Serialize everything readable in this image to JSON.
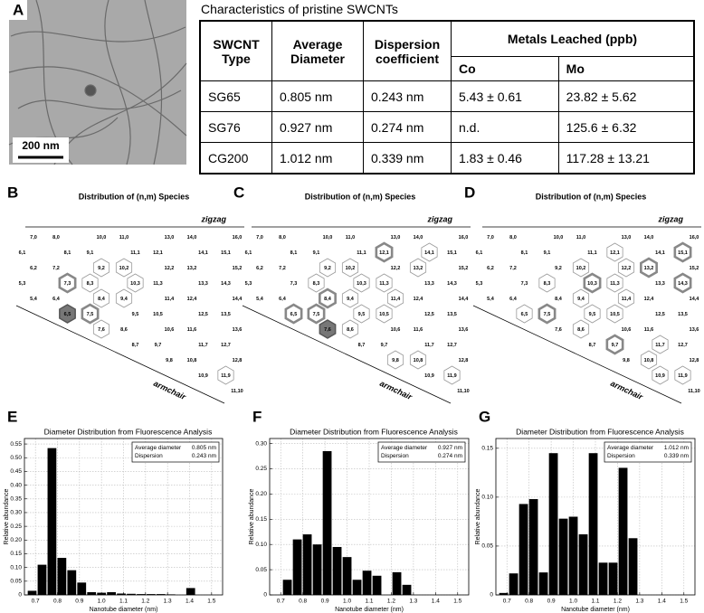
{
  "panel_a": {
    "letter": "A",
    "scale_bar": "200 nm"
  },
  "table": {
    "title": "Characteristics of pristine SWCNTs",
    "header": [
      "SWCNT Type",
      "Average Diameter",
      "Dispersion coefficient",
      "Metals Leached (ppb)"
    ],
    "subheader": [
      "Co",
      "Mo"
    ],
    "rows": [
      [
        "SG65",
        "0.805 nm",
        "0.243 nm",
        "5.43 ± 0.61",
        "23.82 ± 5.62"
      ],
      [
        "SG76",
        "0.927 nm",
        "0.274 nm",
        "n.d.",
        "125.6 ± 6.32"
      ],
      [
        "CG200",
        "1.012 nm",
        "0.339 nm",
        "1.83 ± 0.46",
        "117.28 ± 13.21"
      ]
    ]
  },
  "maps": [
    {
      "letter": "B",
      "title": "Distribution of (n,m) Species",
      "zigzag_label": "zigzag",
      "armchair_label": "armchair",
      "species": [
        [
          {
            "label": "7,0"
          },
          {
            "label": "8,0"
          },
          {
            "label": "10,0"
          },
          {
            "label": "11,0"
          },
          {
            "label": "13,0"
          },
          {
            "label": "14,0"
          },
          {
            "label": "16,0"
          }
        ],
        [
          {
            "label": "6,1"
          },
          {
            "label": "8,1"
          },
          {
            "label": "9,1"
          },
          {
            "label": "11,1"
          },
          {
            "label": "12,1"
          },
          {
            "label": "14,1"
          },
          {
            "label": "15,1"
          }
        ],
        [
          {
            "label": "6,2"
          },
          {
            "label": "7,2"
          },
          {
            "label": "9,2",
            "hex": "thin"
          },
          {
            "label": "10,2",
            "hex": "thin"
          },
          {
            "label": "12,2"
          },
          {
            "label": "13,2"
          },
          {
            "label": "15,2"
          }
        ],
        [
          {
            "label": "5,3"
          },
          {
            "label": "7,3",
            "hex": "bold"
          },
          {
            "label": "8,3",
            "hex": "thin"
          },
          {
            "label": "10,3",
            "hex": "thin"
          },
          {
            "label": "11,3"
          },
          {
            "label": "13,3"
          },
          {
            "label": "14,3"
          }
        ],
        [
          {
            "label": "5,4"
          },
          {
            "label": "6,4"
          },
          {
            "label": "8,4",
            "hex": "thin"
          },
          {
            "label": "9,4",
            "hex": "thin"
          },
          {
            "label": "11,4"
          },
          {
            "label": "12,4"
          },
          {
            "label": "14,4"
          }
        ],
        [
          {
            "label": "6,5",
            "hex": "filled"
          },
          {
            "label": "7,5",
            "hex": "bold"
          },
          {
            "label": "9,5"
          },
          {
            "label": "10,5"
          },
          {
            "label": "12,5"
          },
          {
            "label": "13,5"
          }
        ],
        [
          {
            "label": "7,6",
            "hex": "thin"
          },
          {
            "label": "8,6"
          },
          {
            "label": "10,6"
          },
          {
            "label": "11,6"
          },
          {
            "label": "13,6"
          }
        ],
        [
          {
            "label": "8,7"
          },
          {
            "label": "9,7"
          },
          {
            "label": "11,7"
          },
          {
            "label": "12,7"
          }
        ],
        [
          {
            "label": "9,8"
          },
          {
            "label": "10,8"
          },
          {
            "label": "12,8"
          }
        ],
        [
          {
            "label": "10,9"
          },
          {
            "label": "11,9",
            "hex": "thin"
          }
        ],
        [
          {
            "label": "11,10"
          }
        ]
      ]
    },
    {
      "letter": "C",
      "title": "Distribution of (n,m) Species",
      "zigzag_label": "zigzag",
      "armchair_label": "armchair",
      "species": [
        [
          {
            "label": "7,0"
          },
          {
            "label": "8,0"
          },
          {
            "label": "10,0"
          },
          {
            "label": "11,0"
          },
          {
            "label": "13,0"
          },
          {
            "label": "14,0"
          },
          {
            "label": "16,0"
          }
        ],
        [
          {
            "label": "6,1"
          },
          {
            "label": "8,1"
          },
          {
            "label": "9,1"
          },
          {
            "label": "11,1"
          },
          {
            "label": "12,1",
            "hex": "bold"
          },
          {
            "label": "14,1",
            "hex": "thin"
          },
          {
            "label": "15,1"
          }
        ],
        [
          {
            "label": "6,2"
          },
          {
            "label": "7,2"
          },
          {
            "label": "9,2",
            "hex": "thin"
          },
          {
            "label": "10,2",
            "hex": "thin"
          },
          {
            "label": "12,2"
          },
          {
            "label": "13,2",
            "hex": "thin"
          },
          {
            "label": "15,2"
          }
        ],
        [
          {
            "label": "5,3"
          },
          {
            "label": "7,3"
          },
          {
            "label": "8,3",
            "hex": "thin"
          },
          {
            "label": "10,3",
            "hex": "thin"
          },
          {
            "label": "11,3",
            "hex": "thin"
          },
          {
            "label": "13,3"
          },
          {
            "label": "14,3"
          }
        ],
        [
          {
            "label": "5,4"
          },
          {
            "label": "6,4"
          },
          {
            "label": "8,4",
            "hex": "bold"
          },
          {
            "label": "9,4",
            "hex": "thin"
          },
          {
            "label": "11,4",
            "hex": "thin"
          },
          {
            "label": "12,4"
          },
          {
            "label": "14,4"
          }
        ],
        [
          {
            "label": "6,5",
            "hex": "bold"
          },
          {
            "label": "7,5",
            "hex": "bold"
          },
          {
            "label": "9,5",
            "hex": "thin"
          },
          {
            "label": "10,5",
            "hex": "thin"
          },
          {
            "label": "12,5"
          },
          {
            "label": "13,5"
          }
        ],
        [
          {
            "label": "7,6",
            "hex": "filled"
          },
          {
            "label": "8,6",
            "hex": "thin"
          },
          {
            "label": "10,6"
          },
          {
            "label": "11,6"
          },
          {
            "label": "13,6"
          }
        ],
        [
          {
            "label": "8,7"
          },
          {
            "label": "9,7"
          },
          {
            "label": "11,7"
          },
          {
            "label": "12,7"
          }
        ],
        [
          {
            "label": "9,8",
            "hex": "thin"
          },
          {
            "label": "10,8",
            "hex": "thin"
          },
          {
            "label": "12,8"
          }
        ],
        [
          {
            "label": "10,9"
          },
          {
            "label": "11,9",
            "hex": "thin"
          }
        ],
        [
          {
            "label": "11,10"
          }
        ]
      ]
    },
    {
      "letter": "D",
      "title": "Distribution of (n,m) Species",
      "zigzag_label": "zigzag",
      "armchair_label": "armchair",
      "species": [
        [
          {
            "label": "7,0"
          },
          {
            "label": "8,0"
          },
          {
            "label": "10,0"
          },
          {
            "label": "11,0"
          },
          {
            "label": "13,0"
          },
          {
            "label": "14,0"
          },
          {
            "label": "16,0"
          }
        ],
        [
          {
            "label": "6,1"
          },
          {
            "label": "8,1"
          },
          {
            "label": "9,1"
          },
          {
            "label": "11,1"
          },
          {
            "label": "12,1",
            "hex": "thin"
          },
          {
            "label": "14,1"
          },
          {
            "label": "15,1",
            "hex": "bold"
          }
        ],
        [
          {
            "label": "6,2"
          },
          {
            "label": "7,2"
          },
          {
            "label": "9,2"
          },
          {
            "label": "10,2",
            "hex": "thin"
          },
          {
            "label": "12,2",
            "hex": "thin"
          },
          {
            "label": "13,2",
            "hex": "bold"
          },
          {
            "label": "15,2"
          }
        ],
        [
          {
            "label": "5,3"
          },
          {
            "label": "7,3"
          },
          {
            "label": "8,3",
            "hex": "thin"
          },
          {
            "label": "10,3",
            "hex": "bold"
          },
          {
            "label": "11,3",
            "hex": "thin"
          },
          {
            "label": "13,3"
          },
          {
            "label": "14,3",
            "hex": "bold"
          }
        ],
        [
          {
            "label": "5,4"
          },
          {
            "label": "6,4"
          },
          {
            "label": "8,4"
          },
          {
            "label": "9,4",
            "hex": "thin"
          },
          {
            "label": "11,4",
            "hex": "thin"
          },
          {
            "label": "12,4"
          },
          {
            "label": "14,4"
          }
        ],
        [
          {
            "label": "6,5",
            "hex": "thin"
          },
          {
            "label": "7,5",
            "hex": "bold"
          },
          {
            "label": "9,5",
            "hex": "thin"
          },
          {
            "label": "10,5",
            "hex": "thin"
          },
          {
            "label": "12,5"
          },
          {
            "label": "13,5"
          }
        ],
        [
          {
            "label": "7,6"
          },
          {
            "label": "8,6",
            "hex": "thin"
          },
          {
            "label": "10,6"
          },
          {
            "label": "11,6"
          },
          {
            "label": "13,6"
          }
        ],
        [
          {
            "label": "8,7"
          },
          {
            "label": "9,7",
            "hex": "bold"
          },
          {
            "label": "11,7",
            "hex": "thin"
          },
          {
            "label": "12,7"
          }
        ],
        [
          {
            "label": "9,8"
          },
          {
            "label": "10,8",
            "hex": "thin"
          },
          {
            "label": "12,8"
          }
        ],
        [
          {
            "label": "10,9",
            "hex": "thin"
          },
          {
            "label": "11,9",
            "hex": "thin"
          }
        ],
        [
          {
            "label": "11,10"
          }
        ]
      ]
    }
  ],
  "chart_data": [
    {
      "type": "bar",
      "panel": "E",
      "title": "Diameter Distribution from Fluorescence Analysis",
      "x_label": "Nanotube diameter (nm)",
      "y_label": "Relative abundance",
      "x": [
        0.685,
        0.73,
        0.775,
        0.82,
        0.865,
        0.91,
        0.955,
        1.0,
        1.045,
        1.09,
        1.135,
        1.18,
        1.225,
        1.27,
        1.315,
        1.405
      ],
      "values": [
        0.015,
        0.11,
        0.535,
        0.135,
        0.09,
        0.045,
        0.01,
        0.008,
        0.01,
        0.005,
        0.004,
        0.003,
        0.003,
        0.003,
        0.002,
        0.025
      ],
      "color": "#000000",
      "xlim": [
        0.65,
        1.55
      ],
      "xticks": [
        0.7,
        0.8,
        0.9,
        {
          "value": 1,
          "label": "1.0"
        },
        1.1,
        1.2,
        1.3,
        1.4,
        1.5
      ],
      "ylim": [
        0,
        0.57
      ],
      "yticks": [
        0,
        0.05,
        {
          "value": 0.1,
          "label": "0.10"
        },
        0.15,
        {
          "value": 0.2,
          "label": "0.20"
        },
        0.25,
        {
          "value": 0.3,
          "label": "0.30"
        },
        0.35,
        {
          "value": 0.4,
          "label": "0.40"
        },
        0.45,
        {
          "value": 0.5,
          "label": "0.50"
        },
        0.55
      ],
      "grid": true,
      "legend": "upper right",
      "annotation": [
        [
          "Average diameter",
          "0.805 nm"
        ],
        [
          "Dispersion",
          "0.243 nm"
        ]
      ]
    },
    {
      "type": "bar",
      "panel": "F",
      "title": "Diameter Distribution from Fluorescence Analysis",
      "x_label": "Nanotube diameter (nm)",
      "y_label": "Relative abundance",
      "x": [
        0.73,
        0.775,
        0.82,
        0.865,
        0.91,
        0.955,
        1.0,
        1.045,
        1.09,
        1.135,
        1.225,
        1.27
      ],
      "values": [
        0.03,
        0.11,
        0.12,
        0.1,
        0.285,
        0.095,
        0.075,
        0.03,
        0.048,
        0.038,
        0.045,
        0.02
      ],
      "color": "#000000",
      "xlim": [
        0.65,
        1.55
      ],
      "xticks": [
        0.7,
        0.8,
        0.9,
        {
          "value": 1,
          "label": "1.0"
        },
        1.1,
        1.2,
        1.3,
        1.4,
        1.5
      ],
      "ylim": [
        0,
        0.31
      ],
      "yticks": [
        0,
        0.05,
        {
          "value": 0.1,
          "label": "0.10"
        },
        0.15,
        {
          "value": 0.2,
          "label": "0.20"
        },
        0.25,
        {
          "value": 0.3,
          "label": "0.30"
        }
      ],
      "grid": true,
      "legend": "upper right",
      "annotation": [
        [
          "Average diameter",
          "0.927 nm"
        ],
        [
          "Dispersion",
          "0.274 nm"
        ]
      ]
    },
    {
      "type": "bar",
      "panel": "G",
      "title": "Diameter Distribution from Fluorescence Analysis",
      "x_label": "Nanotube diameter (nm)",
      "y_label": "Relative abundance",
      "x": [
        0.685,
        0.73,
        0.775,
        0.82,
        0.865,
        0.91,
        0.955,
        1.0,
        1.045,
        1.09,
        1.135,
        1.18,
        1.225,
        1.27
      ],
      "values": [
        0.002,
        0.022,
        0.093,
        0.098,
        0.023,
        0.145,
        0.078,
        0.08,
        0.062,
        0.145,
        0.033,
        0.033,
        0.13,
        0.058
      ],
      "color": "#000000",
      "xlim": [
        0.65,
        1.55
      ],
      "xticks": [
        0.7,
        0.8,
        0.9,
        {
          "value": 1,
          "label": "1.0"
        },
        1.1,
        1.2,
        1.3,
        1.4,
        1.5
      ],
      "ylim": [
        0,
        0.16
      ],
      "yticks": [
        0,
        0.05,
        {
          "value": 0.1,
          "label": "0.10"
        },
        0.15
      ],
      "grid": true,
      "legend": "upper right",
      "annotation": [
        [
          "Average diameter",
          "1.012 nm"
        ],
        [
          "Dispersion",
          "0.339 nm"
        ]
      ]
    }
  ]
}
